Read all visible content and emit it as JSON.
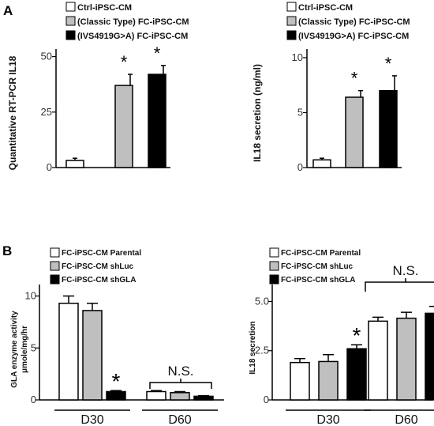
{
  "panel_labels": {
    "a": "A",
    "b": "B"
  },
  "colors": {
    "ctrl": "#ffffff",
    "classic": "#bfbfbf",
    "ivs": "#000000",
    "parental": "#ffffff",
    "shluc": "#bfbfbf",
    "shgla": "#000000"
  },
  "chart_data": [
    {
      "type": "bar",
      "panel": "A",
      "ylabel": "Quantitative RT-PCR IL18",
      "ylim": [
        0,
        52
      ],
      "yticks": [
        "0",
        "25",
        "50"
      ],
      "categories": [
        "Ctrl-iPSC-CM",
        "(Classic Type) FC-iPSC-CM",
        "(IVS4919G>A) FC-iPSC-CM"
      ],
      "values": [
        3.2,
        37,
        42
      ],
      "errors": [
        1,
        5,
        4
      ],
      "significance": [
        "",
        "*",
        "*"
      ],
      "legend": [
        "Ctrl-iPSC-CM",
        "(Classic Type) FC-iPSC-CM",
        "(IVS4919G>A) FC-iPSC-CM"
      ],
      "legend_position": "top"
    },
    {
      "type": "bar",
      "panel": "A",
      "ylabel": "IL18 secretion (ng/ml)",
      "ylim": [
        0,
        10.5
      ],
      "yticks": [
        "0",
        "5",
        "10"
      ],
      "categories": [
        "Ctrl-iPSC-CM",
        "(Classic Type) FC-iPSC-CM",
        "(IVS4919G>A) FC-iPSC-CM"
      ],
      "values": [
        0.7,
        6.4,
        7.0
      ],
      "errors": [
        0.15,
        0.6,
        1.35
      ],
      "significance": [
        "",
        "*",
        "*"
      ],
      "legend": [
        "Ctrl-iPSC-CM",
        "(Classic Type) FC-iPSC-CM",
        "(IVS4919G>A) FC-iPSC-CM"
      ],
      "legend_position": "top"
    },
    {
      "type": "bar",
      "panel": "B",
      "ylabel_lines": [
        "GLA enzyme activity",
        "μmole/mg/hr"
      ],
      "ylim": [
        0,
        10.8
      ],
      "yticks": [
        "0",
        "5",
        "10"
      ],
      "categories": [
        "D30",
        "D60"
      ],
      "series": [
        {
          "name": "FC-iPSC-CM Parental",
          "values": [
            9.3,
            0.8
          ],
          "errors": [
            0.7,
            0.1
          ]
        },
        {
          "name": "FC-iPSC-CM shLuc",
          "values": [
            8.6,
            0.7
          ],
          "errors": [
            0.7,
            0.1
          ]
        },
        {
          "name": "FC-iPSC-CM shGLA",
          "values": [
            0.8,
            0.35
          ],
          "errors": [
            0.1,
            0.06
          ]
        }
      ],
      "annotations": [
        "*",
        "N.S."
      ],
      "legend_position": "top-left"
    },
    {
      "type": "bar",
      "panel": "B",
      "ylabel": "IL18 secretion",
      "ylim": [
        0,
        5.7
      ],
      "yticks": [
        "0",
        "2.5",
        "5.0"
      ],
      "categories": [
        "D30",
        "D60"
      ],
      "series": [
        {
          "name": "FC-iPSC-CM Parental",
          "values": [
            1.9,
            4.0
          ],
          "errors": [
            0.2,
            0.2
          ]
        },
        {
          "name": "FC-iPSC-CM shLuc",
          "values": [
            1.95,
            4.15
          ],
          "errors": [
            0.35,
            0.3
          ]
        },
        {
          "name": "FC-iPSC-CM shGLA",
          "values": [
            2.6,
            4.4
          ],
          "errors": [
            0.2,
            0.35
          ]
        }
      ],
      "annotations": [
        "*",
        "N.S."
      ],
      "legend_position": "top-center"
    }
  ]
}
